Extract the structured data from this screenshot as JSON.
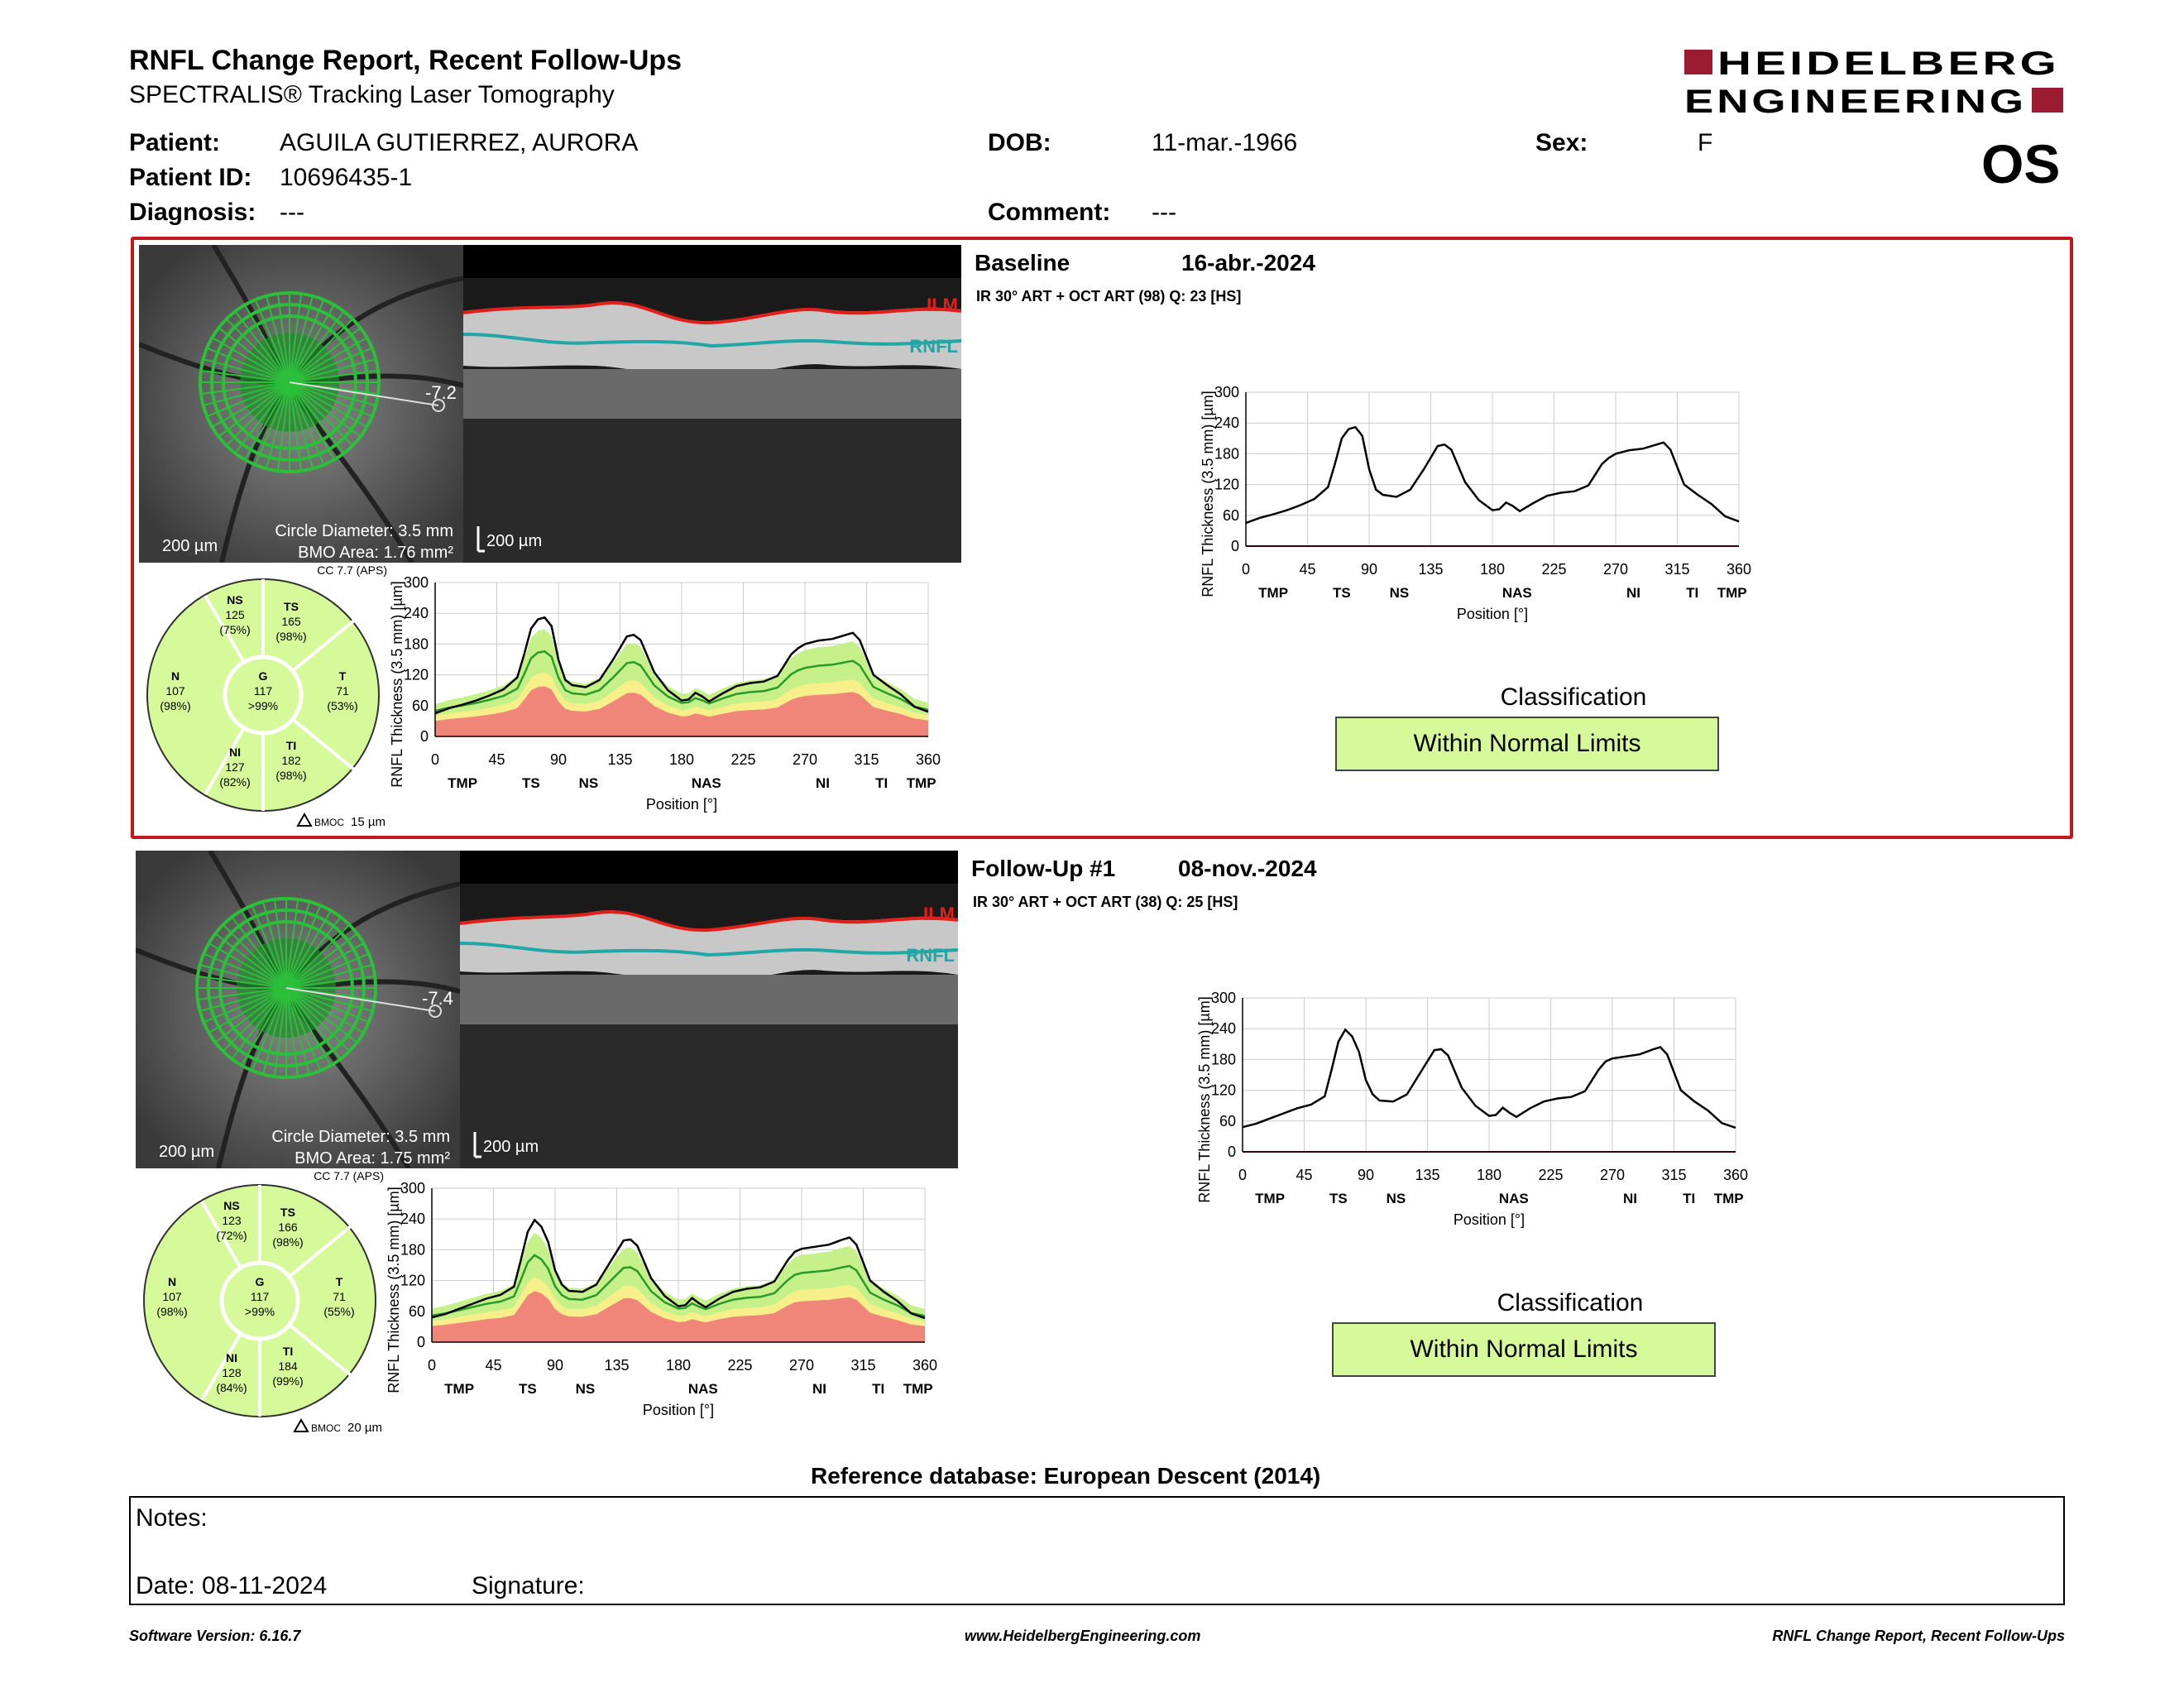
{
  "header": {
    "title": "RNFL Change Report, Recent Follow-Ups",
    "subtitle": "SPECTRALIS® Tracking Laser Tomography",
    "logo_line1": "HEIDELBERG",
    "logo_line2": "ENGINEERING",
    "eye": "OS"
  },
  "patient": {
    "patient_label": "Patient:",
    "patient_value": "AGUILA GUTIERREZ, AURORA",
    "id_label": "Patient ID:",
    "id_value": "10696435-1",
    "diagnosis_label": "Diagnosis:",
    "diagnosis_value": "---",
    "dob_label": "DOB:",
    "dob_value": "11-mar.-1966",
    "comment_label": "Comment:",
    "comment_value": "---",
    "sex_label": "Sex:",
    "sex_value": "F"
  },
  "colors": {
    "accent_red": "#c0191f",
    "normal_green": "#d6f99a",
    "ilm": "#e0201a",
    "rnfl": "#22a7a7"
  },
  "scans": [
    {
      "title": "Baseline",
      "date": "16-abr.-2024",
      "protocol": "IR 30° ART + OCT ART (98) Q: 23 [HS]",
      "scale_fundus": "200 µm",
      "scale_bscan": "200 µm",
      "circle_diameter": "Circle Diameter: 3.5 mm",
      "bmo_area": "BMO Area: 1.76 mm²",
      "angle": "-7.2",
      "ilm_label": "ILM",
      "rnfl_label": "RNFL",
      "cc": "CC 7.7 (APS)",
      "bmoc_prefix": "BMOC",
      "bmoc": "15 µm",
      "sectors": {
        "NS": {
          "label": "NS",
          "value": "125",
          "pct": "(75%)"
        },
        "TS": {
          "label": "TS",
          "value": "165",
          "pct": "(98%)"
        },
        "N": {
          "label": "N",
          "value": "107",
          "pct": "(98%)"
        },
        "G": {
          "label": "G",
          "value": "117",
          "pct": ">99%"
        },
        "T": {
          "label": "T",
          "value": "71",
          "pct": "(53%)"
        },
        "NI": {
          "label": "NI",
          "value": "127",
          "pct": "(82%)"
        },
        "TI": {
          "label": "TI",
          "value": "182",
          "pct": "(98%)"
        }
      },
      "classification_title": "Classification",
      "classification": "Within Normal Limits"
    },
    {
      "title": "Follow-Up #1",
      "date": "08-nov.-2024",
      "protocol": "IR 30° ART + OCT ART (38) Q: 25 [HS]",
      "scale_fundus": "200 µm",
      "scale_bscan": "200 µm",
      "circle_diameter": "Circle Diameter: 3.5 mm",
      "bmo_area": "BMO Area: 1.75 mm²",
      "angle": "-7.4",
      "ilm_label": "ILM",
      "rnfl_label": "RNFL",
      "cc": "CC 7.7 (APS)",
      "bmoc_prefix": "BMOC",
      "bmoc": "20 µm",
      "sectors": {
        "NS": {
          "label": "NS",
          "value": "123",
          "pct": "(72%)"
        },
        "TS": {
          "label": "TS",
          "value": "166",
          "pct": "(98%)"
        },
        "N": {
          "label": "N",
          "value": "107",
          "pct": "(98%)"
        },
        "G": {
          "label": "G",
          "value": "117",
          "pct": ">99%"
        },
        "T": {
          "label": "T",
          "value": "71",
          "pct": "(55%)"
        },
        "NI": {
          "label": "NI",
          "value": "128",
          "pct": "(84%)"
        },
        "TI": {
          "label": "TI",
          "value": "184",
          "pct": "(99%)"
        }
      },
      "classification_title": "Classification",
      "classification": "Within Normal Limits"
    }
  ],
  "chart_data": [
    {
      "type": "line",
      "title": "",
      "ylabel": "RNFL Thickness (3.5 mm) [µm]",
      "xlabel": "Position [°]",
      "xlim": [
        0,
        360
      ],
      "ylim": [
        0,
        300
      ],
      "xticks": [
        0,
        45,
        90,
        135,
        180,
        225,
        270,
        315,
        360
      ],
      "yticks": [
        0,
        60,
        120,
        180,
        240,
        300
      ],
      "regions": [
        "TMP",
        "TS",
        "NS",
        "NAS",
        "NI",
        "TI",
        "TMP"
      ],
      "series": [
        {
          "x": [
            0,
            10,
            20,
            30,
            40,
            50,
            60,
            65,
            70,
            75,
            80,
            85,
            90,
            95,
            100,
            110,
            120,
            130,
            140,
            145,
            150,
            160,
            170,
            180,
            185,
            190,
            195,
            200,
            210,
            220,
            230,
            240,
            250,
            260,
            265,
            270,
            280,
            290,
            300,
            305,
            310,
            320,
            330,
            340,
            350,
            360
          ],
          "values": [
            45,
            55,
            62,
            70,
            80,
            92,
            115,
            160,
            210,
            228,
            232,
            215,
            150,
            110,
            100,
            96,
            110,
            150,
            195,
            198,
            188,
            125,
            90,
            70,
            72,
            85,
            78,
            68,
            84,
            98,
            104,
            107,
            118,
            160,
            172,
            180,
            187,
            190,
            198,
            202,
            188,
            120,
            100,
            82,
            58,
            48
          ]
        }
      ]
    },
    {
      "type": "line",
      "title": "",
      "ylabel": "RNFL Thickness (3.5 mm) [µm]",
      "xlabel": "Position [°]",
      "xlim": [
        0,
        360
      ],
      "ylim": [
        0,
        300
      ],
      "xticks": [
        0,
        45,
        90,
        135,
        180,
        225,
        270,
        315,
        360
      ],
      "yticks": [
        0,
        60,
        120,
        180,
        240,
        300
      ],
      "regions": [
        "TMP",
        "TS",
        "NS",
        "NAS",
        "NI",
        "TI",
        "TMP"
      ],
      "series": [
        {
          "x": [
            0,
            10,
            20,
            30,
            40,
            50,
            60,
            65,
            70,
            75,
            80,
            85,
            90,
            95,
            100,
            110,
            120,
            130,
            140,
            145,
            150,
            160,
            170,
            180,
            185,
            190,
            195,
            200,
            210,
            220,
            230,
            240,
            250,
            260,
            265,
            270,
            280,
            290,
            300,
            305,
            310,
            320,
            330,
            340,
            350,
            360
          ],
          "values": [
            48,
            55,
            65,
            75,
            85,
            92,
            108,
            160,
            215,
            238,
            225,
            195,
            140,
            112,
            100,
            98,
            112,
            155,
            198,
            200,
            188,
            125,
            90,
            70,
            72,
            86,
            76,
            68,
            85,
            98,
            104,
            107,
            118,
            160,
            176,
            182,
            186,
            190,
            200,
            204,
            190,
            120,
            98,
            80,
            56,
            47
          ]
        }
      ]
    },
    {
      "type": "line",
      "title": "",
      "ylabel": "RNFL Thickness (3.5 mm) [µm]",
      "xlabel": "Position [°]",
      "xlim": [
        0,
        360
      ],
      "ylim": [
        0,
        300
      ],
      "xticks": [
        0,
        45,
        90,
        135,
        180,
        225,
        270,
        315,
        360
      ],
      "yticks": [
        0,
        60,
        120,
        180,
        240,
        300
      ],
      "regions": [
        "TMP",
        "TS",
        "NS",
        "NAS",
        "NI",
        "TI",
        "TMP"
      ],
      "series": [
        {
          "x": [
            0,
            10,
            20,
            30,
            40,
            50,
            60,
            65,
            70,
            75,
            80,
            85,
            90,
            95,
            100,
            110,
            120,
            130,
            140,
            145,
            150,
            160,
            170,
            180,
            185,
            190,
            195,
            200,
            210,
            220,
            230,
            240,
            250,
            260,
            265,
            270,
            280,
            290,
            300,
            305,
            310,
            320,
            330,
            340,
            350,
            360
          ],
          "values": [
            45,
            55,
            62,
            70,
            80,
            92,
            115,
            160,
            210,
            228,
            232,
            215,
            150,
            110,
            100,
            96,
            110,
            150,
            195,
            198,
            188,
            125,
            90,
            70,
            72,
            85,
            78,
            68,
            84,
            98,
            104,
            107,
            118,
            160,
            172,
            180,
            187,
            190,
            198,
            202,
            188,
            120,
            100,
            82,
            58,
            48
          ]
        }
      ]
    },
    {
      "type": "line",
      "title": "",
      "ylabel": "RNFL Thickness (3.5 mm) [µm]",
      "xlabel": "Position [°]",
      "xlim": [
        0,
        360
      ],
      "ylim": [
        0,
        300
      ],
      "xticks": [
        0,
        45,
        90,
        135,
        180,
        225,
        270,
        315,
        360
      ],
      "yticks": [
        0,
        60,
        120,
        180,
        240,
        300
      ],
      "regions": [
        "TMP",
        "TS",
        "NS",
        "NAS",
        "NI",
        "TI",
        "TMP"
      ],
      "series": [
        {
          "x": [
            0,
            10,
            20,
            30,
            40,
            50,
            60,
            65,
            70,
            75,
            80,
            85,
            90,
            95,
            100,
            110,
            120,
            130,
            140,
            145,
            150,
            160,
            170,
            180,
            185,
            190,
            195,
            200,
            210,
            220,
            230,
            240,
            250,
            260,
            265,
            270,
            280,
            290,
            300,
            305,
            310,
            320,
            330,
            340,
            350,
            360
          ],
          "values": [
            48,
            55,
            65,
            75,
            85,
            92,
            108,
            160,
            215,
            238,
            225,
            195,
            140,
            112,
            100,
            98,
            112,
            155,
            198,
            200,
            188,
            125,
            90,
            70,
            72,
            86,
            76,
            68,
            85,
            98,
            104,
            107,
            118,
            160,
            176,
            182,
            186,
            190,
            200,
            204,
            190,
            120,
            98,
            80,
            56,
            47
          ]
        }
      ]
    }
  ],
  "footer": {
    "refdb": "Reference database: European Descent (2014)",
    "notes_label": "Notes:",
    "date_label": "Date: 08-11-2024",
    "signature_label": "Signature:",
    "software": "Software Version: 6.16.7",
    "website": "www.HeidelbergEngineering.com",
    "report_name": "RNFL Change Report, Recent Follow-Ups"
  }
}
